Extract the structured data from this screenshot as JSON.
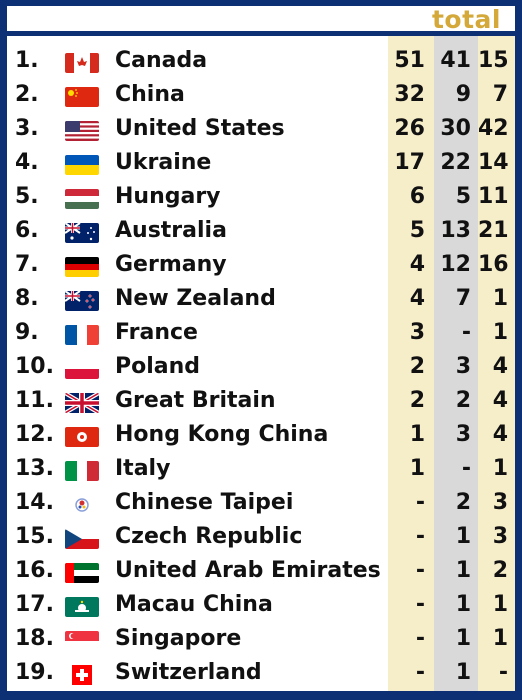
{
  "header": {
    "title": "total"
  },
  "colors": {
    "frame": "#0d2f73",
    "title": "#d4a93a",
    "gold_col": "#f6edc9",
    "silver_col": "#d9d9d9"
  },
  "rows": [
    {
      "rank": "1.",
      "country": "Canada",
      "gold": "51",
      "silver": "41",
      "bronze": "15",
      "flag": "canada-flag-icon"
    },
    {
      "rank": "2.",
      "country": "China",
      "gold": "32",
      "silver": "9",
      "bronze": "7",
      "flag": "china-flag-icon"
    },
    {
      "rank": "3.",
      "country": "United States",
      "gold": "26",
      "silver": "30",
      "bronze": "42",
      "flag": "usa-flag-icon"
    },
    {
      "rank": "4.",
      "country": "Ukraine",
      "gold": "17",
      "silver": "22",
      "bronze": "14",
      "flag": "ukraine-flag-icon"
    },
    {
      "rank": "5.",
      "country": "Hungary",
      "gold": "6",
      "silver": "5",
      "bronze": "11",
      "flag": "hungary-flag-icon"
    },
    {
      "rank": "6.",
      "country": "Australia",
      "gold": "5",
      "silver": "13",
      "bronze": "21",
      "flag": "australia-flag-icon"
    },
    {
      "rank": "7.",
      "country": "Germany",
      "gold": "4",
      "silver": "12",
      "bronze": "16",
      "flag": "germany-flag-icon"
    },
    {
      "rank": "8.",
      "country": "New Zealand",
      "gold": "4",
      "silver": "7",
      "bronze": "1",
      "flag": "new-zealand-flag-icon"
    },
    {
      "rank": "9.",
      "country": "France",
      "gold": "3",
      "silver": "-",
      "bronze": "1",
      "flag": "france-flag-icon"
    },
    {
      "rank": "10.",
      "country": "Poland",
      "gold": "2",
      "silver": "3",
      "bronze": "4",
      "flag": "poland-flag-icon"
    },
    {
      "rank": "11.",
      "country": "Great Britain",
      "gold": "2",
      "silver": "2",
      "bronze": "4",
      "flag": "great-britain-flag-icon"
    },
    {
      "rank": "12.",
      "country": "Hong Kong China",
      "gold": "1",
      "silver": "3",
      "bronze": "4",
      "flag": "hong-kong-flag-icon"
    },
    {
      "rank": "13.",
      "country": "Italy",
      "gold": "1",
      "silver": "-",
      "bronze": "1",
      "flag": "italy-flag-icon"
    },
    {
      "rank": "14.",
      "country": "Chinese Taipei",
      "gold": "-",
      "silver": "2",
      "bronze": "3",
      "flag": "chinese-taipei-flag-icon"
    },
    {
      "rank": "15.",
      "country": "Czech Republic",
      "gold": "-",
      "silver": "1",
      "bronze": "3",
      "flag": "czech-flag-icon"
    },
    {
      "rank": "16.",
      "country": "United Arab Emirates",
      "gold": "-",
      "silver": "1",
      "bronze": "2",
      "flag": "uae-flag-icon"
    },
    {
      "rank": "17.",
      "country": "Macau China",
      "gold": "-",
      "silver": "1",
      "bronze": "1",
      "flag": "macau-flag-icon"
    },
    {
      "rank": "18.",
      "country": "Singapore",
      "gold": "-",
      "silver": "1",
      "bronze": "1",
      "flag": "singapore-flag-icon"
    },
    {
      "rank": "19.",
      "country": "Switzerland",
      "gold": "-",
      "silver": "1",
      "bronze": "-",
      "flag": "switzerland-flag-icon"
    }
  ]
}
